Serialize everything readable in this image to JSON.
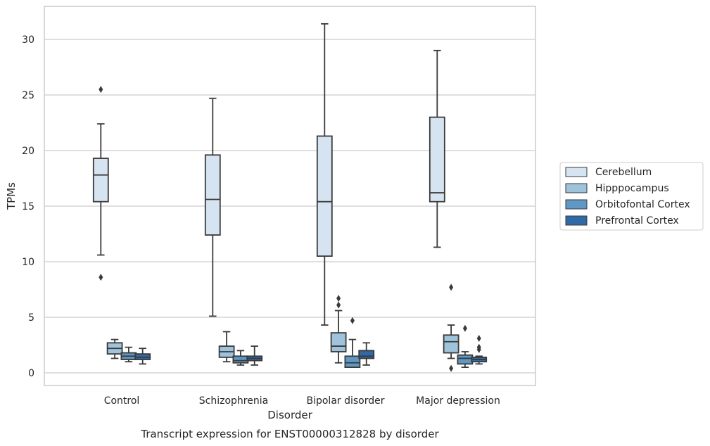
{
  "chart_data": {
    "type": "box",
    "title": "Transcript expression for ENST00000312828 by disorder",
    "xlabel": "Disorder",
    "ylabel": "TPMs",
    "ylim": [
      -1,
      33
    ],
    "yticks": [
      0,
      5,
      10,
      15,
      20,
      25,
      30
    ],
    "grid": "horizontal",
    "legend_position": "right",
    "categories": [
      "Control",
      "Schizophrenia",
      "Bipolar disorder",
      "Major depression"
    ],
    "series": [
      {
        "name": "Cerebellum",
        "color": "#d6e4f2",
        "boxes": [
          {
            "whislo": 10.6,
            "q1": 15.4,
            "med": 17.8,
            "q3": 19.3,
            "whishi": 22.4,
            "fliers": [
              25.5,
              8.6
            ]
          },
          {
            "whislo": 5.1,
            "q1": 12.4,
            "med": 15.6,
            "q3": 19.6,
            "whishi": 24.7,
            "fliers": []
          },
          {
            "whislo": 4.3,
            "q1": 10.5,
            "med": 15.4,
            "q3": 21.3,
            "whishi": 31.4,
            "fliers": []
          },
          {
            "whislo": 11.3,
            "q1": 15.4,
            "med": 16.2,
            "q3": 23.0,
            "whishi": 29.0,
            "fliers": []
          }
        ]
      },
      {
        "name": "Hipppocampus",
        "color": "#9ec3da",
        "boxes": [
          {
            "whislo": 1.3,
            "q1": 1.7,
            "med": 2.2,
            "q3": 2.7,
            "whishi": 3.0,
            "fliers": []
          },
          {
            "whislo": 1.0,
            "q1": 1.4,
            "med": 1.9,
            "q3": 2.4,
            "whishi": 3.7,
            "fliers": []
          },
          {
            "whislo": 0.9,
            "q1": 1.9,
            "med": 2.4,
            "q3": 3.6,
            "whishi": 5.6,
            "fliers": [
              6.1,
              6.7
            ]
          },
          {
            "whislo": 1.3,
            "q1": 1.8,
            "med": 2.8,
            "q3": 3.4,
            "whishi": 4.3,
            "fliers": [
              7.7,
              0.4
            ]
          }
        ]
      },
      {
        "name": "Orbitofontal Cortex",
        "color": "#5f98c4",
        "boxes": [
          {
            "whislo": 1.0,
            "q1": 1.2,
            "med": 1.5,
            "q3": 1.8,
            "whishi": 2.3,
            "fliers": []
          },
          {
            "whislo": 0.7,
            "q1": 0.9,
            "med": 1.1,
            "q3": 1.5,
            "whishi": 2.0,
            "fliers": []
          },
          {
            "whislo": 0.5,
            "q1": 0.5,
            "med": 0.9,
            "q3": 1.5,
            "whishi": 3.0,
            "fliers": [
              4.7
            ]
          },
          {
            "whislo": 0.5,
            "q1": 0.8,
            "med": 1.3,
            "q3": 1.6,
            "whishi": 1.9,
            "fliers": [
              4.0
            ]
          }
        ]
      },
      {
        "name": "Prefrontal Cortex",
        "color": "#2f6aa6",
        "boxes": [
          {
            "whislo": 0.8,
            "q1": 1.2,
            "med": 1.4,
            "q3": 1.7,
            "whishi": 2.2,
            "fliers": []
          },
          {
            "whislo": 0.7,
            "q1": 1.1,
            "med": 1.3,
            "q3": 1.5,
            "whishi": 2.4,
            "fliers": []
          },
          {
            "whislo": 0.7,
            "q1": 1.3,
            "med": 1.5,
            "q3": 2.0,
            "whishi": 2.7,
            "fliers": []
          },
          {
            "whislo": 0.8,
            "q1": 1.0,
            "med": 1.2,
            "q3": 1.4,
            "whishi": 1.5,
            "fliers": [
              2.1,
              2.3,
              3.1
            ]
          }
        ]
      }
    ]
  }
}
